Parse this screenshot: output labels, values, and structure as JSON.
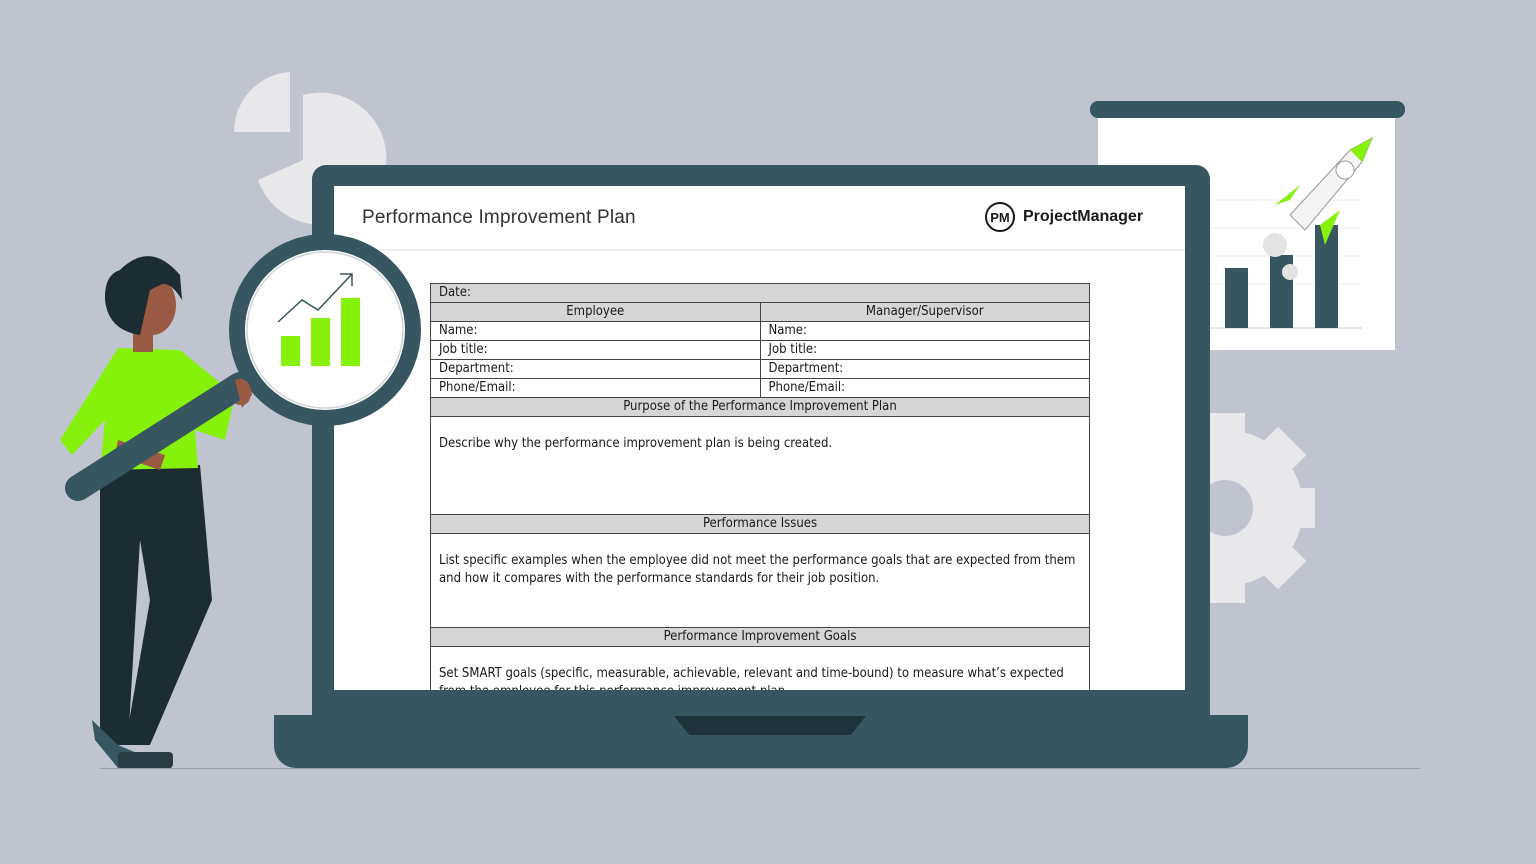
{
  "document": {
    "title": "Performance Improvement Plan",
    "brand": {
      "mark": "PM",
      "name": "ProjectManager"
    },
    "form": {
      "date_label": "Date:",
      "col_employee": "Employee",
      "col_manager": "Manager/Supervisor",
      "fields": [
        "Name:",
        "Job title:",
        "Department:",
        "Phone/Email:"
      ],
      "sections": [
        {
          "heading": "Purpose of the Performance Improvement Plan",
          "body": "Describe why the performance improvement plan is being created."
        },
        {
          "heading": "Performance Issues",
          "body": "List specific examples when the employee did not meet the performance goals that are expected from them and how it compares with the performance standards for their job position."
        },
        {
          "heading": "Performance Improvement Goals",
          "body": "Set SMART goals (specific, measurable, achievable, relevant and time-bound) to measure what’s expected from the employee for this performance improvement plan."
        }
      ]
    }
  },
  "colors": {
    "background": "#c0c4cf",
    "laptop": "#37565f",
    "accent_green": "#86f20c",
    "light_shape": "#e8e8ea"
  }
}
